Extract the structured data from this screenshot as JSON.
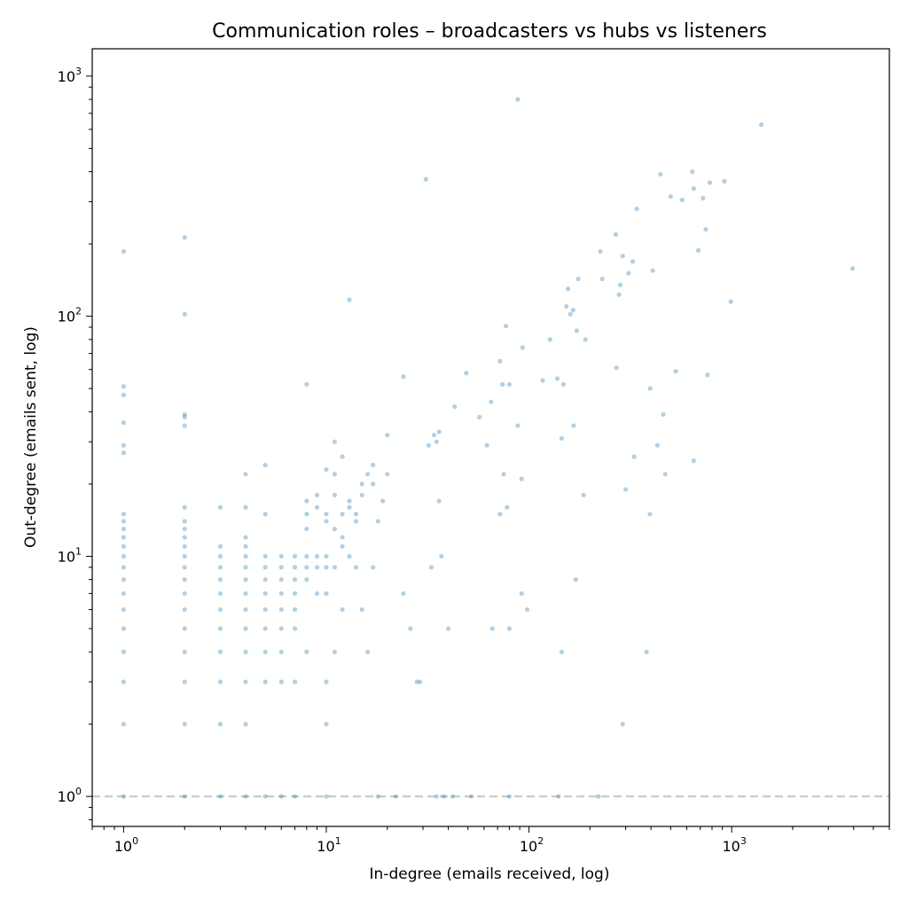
{
  "chart_data": {
    "type": "scatter",
    "title": "Communication roles – broadcasters vs hubs vs listeners",
    "xlabel": "In-degree (emails received, log)",
    "ylabel": "Out-degree (emails sent, log)",
    "xscale": "log",
    "yscale": "log",
    "xlim": [
      0.7,
      6000
    ],
    "ylim": [
      0.75,
      1300
    ],
    "grid": false,
    "legend": "none",
    "x_ticks": [
      {
        "base": "10",
        "exp": "0",
        "value": 1
      },
      {
        "base": "10",
        "exp": "1",
        "value": 10
      },
      {
        "base": "10",
        "exp": "2",
        "value": 100
      },
      {
        "base": "10",
        "exp": "3",
        "value": 1000
      }
    ],
    "y_ticks": [
      {
        "base": "10",
        "exp": "0",
        "value": 1
      },
      {
        "base": "10",
        "exp": "1",
        "value": 10
      },
      {
        "base": "10",
        "exp": "2",
        "value": 100
      },
      {
        "base": "10",
        "exp": "3",
        "value": 1000
      }
    ],
    "reference_line": {
      "y": 1,
      "style": "dashed",
      "color": "#c8c8c8"
    },
    "marker_color": "#1f77b4",
    "marker_alpha": 0.35,
    "series": [
      {
        "points": [
          [
            1,
            1
          ],
          [
            2,
            1
          ],
          [
            3,
            1
          ],
          [
            4,
            1
          ],
          [
            5,
            1
          ],
          [
            6,
            1
          ],
          [
            7,
            1
          ],
          [
            10,
            1
          ],
          [
            18,
            1
          ],
          [
            22,
            1
          ],
          [
            35,
            1
          ],
          [
            38,
            1
          ],
          [
            42,
            1
          ],
          [
            52,
            1
          ],
          [
            80,
            1
          ],
          [
            140,
            1
          ],
          [
            220,
            1
          ],
          [
            1,
            2
          ],
          [
            2,
            2
          ],
          [
            3,
            2
          ],
          [
            4,
            2
          ],
          [
            10,
            2
          ],
          [
            290,
            2
          ],
          [
            1,
            3
          ],
          [
            2,
            3
          ],
          [
            3,
            3
          ],
          [
            4,
            3
          ],
          [
            5,
            3
          ],
          [
            6,
            3
          ],
          [
            7,
            3
          ],
          [
            10,
            3
          ],
          [
            28,
            3
          ],
          [
            29,
            3
          ],
          [
            1,
            4
          ],
          [
            2,
            4
          ],
          [
            3,
            4
          ],
          [
            4,
            4
          ],
          [
            5,
            4
          ],
          [
            6,
            4
          ],
          [
            8,
            4
          ],
          [
            11,
            4
          ],
          [
            16,
            4
          ],
          [
            145,
            4
          ],
          [
            380,
            4
          ],
          [
            1,
            5
          ],
          [
            2,
            5
          ],
          [
            3,
            5
          ],
          [
            4,
            5
          ],
          [
            5,
            5
          ],
          [
            6,
            5
          ],
          [
            7,
            5
          ],
          [
            26,
            5
          ],
          [
            40,
            5
          ],
          [
            66,
            5
          ],
          [
            80,
            5
          ],
          [
            1,
            6
          ],
          [
            2,
            6
          ],
          [
            3,
            6
          ],
          [
            4,
            6
          ],
          [
            5,
            6
          ],
          [
            6,
            6
          ],
          [
            7,
            6
          ],
          [
            12,
            6
          ],
          [
            15,
            6
          ],
          [
            98,
            6
          ],
          [
            1,
            7
          ],
          [
            2,
            7
          ],
          [
            3,
            7
          ],
          [
            4,
            7
          ],
          [
            5,
            7
          ],
          [
            6,
            7
          ],
          [
            7,
            7
          ],
          [
            9,
            7
          ],
          [
            10,
            7
          ],
          [
            24,
            7
          ],
          [
            92,
            7
          ],
          [
            1,
            8
          ],
          [
            2,
            8
          ],
          [
            3,
            8
          ],
          [
            4,
            8
          ],
          [
            5,
            8
          ],
          [
            6,
            8
          ],
          [
            7,
            8
          ],
          [
            8,
            8
          ],
          [
            170,
            8
          ],
          [
            1,
            9
          ],
          [
            2,
            9
          ],
          [
            3,
            9
          ],
          [
            4,
            9
          ],
          [
            5,
            9
          ],
          [
            6,
            9
          ],
          [
            7,
            9
          ],
          [
            8,
            9
          ],
          [
            9,
            9
          ],
          [
            10,
            9
          ],
          [
            11,
            9
          ],
          [
            14,
            9
          ],
          [
            17,
            9
          ],
          [
            33,
            9
          ],
          [
            1,
            10
          ],
          [
            2,
            10
          ],
          [
            3,
            10
          ],
          [
            4,
            10
          ],
          [
            5,
            10
          ],
          [
            6,
            10
          ],
          [
            7,
            10
          ],
          [
            8,
            10
          ],
          [
            9,
            10
          ],
          [
            10,
            10
          ],
          [
            13,
            10
          ],
          [
            37,
            10
          ],
          [
            1,
            11
          ],
          [
            2,
            11
          ],
          [
            3,
            11
          ],
          [
            4,
            11
          ],
          [
            12,
            11
          ],
          [
            12,
            12
          ],
          [
            1,
            12
          ],
          [
            2,
            12
          ],
          [
            4,
            12
          ],
          [
            8,
            13
          ],
          [
            11,
            13
          ],
          [
            1,
            13
          ],
          [
            2,
            13
          ],
          [
            10,
            14
          ],
          [
            14,
            14
          ],
          [
            18,
            14
          ],
          [
            1,
            14
          ],
          [
            2,
            14
          ],
          [
            5,
            15
          ],
          [
            8,
            15
          ],
          [
            10,
            15
          ],
          [
            12,
            15
          ],
          [
            14,
            15
          ],
          [
            72,
            15
          ],
          [
            395,
            15
          ],
          [
            1,
            15
          ],
          [
            2,
            16
          ],
          [
            3,
            16
          ],
          [
            4,
            16
          ],
          [
            9,
            16
          ],
          [
            13,
            16
          ],
          [
            78,
            16
          ],
          [
            8,
            17
          ],
          [
            13,
            17
          ],
          [
            19,
            17
          ],
          [
            36,
            17
          ],
          [
            9,
            18
          ],
          [
            11,
            18
          ],
          [
            15,
            18
          ],
          [
            186,
            18
          ],
          [
            17,
            20
          ],
          [
            15,
            20
          ],
          [
            300,
            19
          ],
          [
            92,
            21
          ],
          [
            4,
            22
          ],
          [
            11,
            22
          ],
          [
            16,
            22
          ],
          [
            20,
            22
          ],
          [
            75,
            22
          ],
          [
            470,
            22
          ],
          [
            5,
            24
          ],
          [
            17,
            24
          ],
          [
            10,
            23
          ],
          [
            1,
            27
          ],
          [
            1,
            29
          ],
          [
            12,
            26
          ],
          [
            330,
            26
          ],
          [
            650,
            25
          ],
          [
            11,
            30
          ],
          [
            35,
            30
          ],
          [
            32,
            29
          ],
          [
            36,
            33
          ],
          [
            34,
            32
          ],
          [
            20,
            32
          ],
          [
            145,
            31
          ],
          [
            62,
            29
          ],
          [
            430,
            29
          ],
          [
            2,
            35
          ],
          [
            2,
            38
          ],
          [
            2,
            39
          ],
          [
            1,
            36
          ],
          [
            57,
            38
          ],
          [
            88,
            35
          ],
          [
            166,
            35
          ],
          [
            460,
            39
          ],
          [
            43,
            42
          ],
          [
            65,
            44
          ],
          [
            1,
            47
          ],
          [
            1,
            51
          ],
          [
            8,
            52
          ],
          [
            74,
            52
          ],
          [
            80,
            52
          ],
          [
            148,
            52
          ],
          [
            396,
            50
          ],
          [
            24,
            56
          ],
          [
            49,
            58
          ],
          [
            117,
            54
          ],
          [
            138,
            55
          ],
          [
            530,
            59
          ],
          [
            760,
            57
          ],
          [
            270,
            61
          ],
          [
            72,
            65
          ],
          [
            93,
            74
          ],
          [
            127,
            80
          ],
          [
            190,
            80
          ],
          [
            172,
            87
          ],
          [
            77,
            91
          ],
          [
            2,
            102
          ],
          [
            160,
            102
          ],
          [
            153,
            110
          ],
          [
            165,
            106
          ],
          [
            156,
            130
          ],
          [
            175,
            143
          ],
          [
            230,
            143
          ],
          [
            278,
            123
          ],
          [
            282,
            135
          ],
          [
            310,
            151
          ],
          [
            408,
            155
          ],
          [
            990,
            115
          ],
          [
            13,
            117
          ],
          [
            225,
            186
          ],
          [
            268,
            219
          ],
          [
            290,
            178
          ],
          [
            325,
            169
          ],
          [
            685,
            188
          ],
          [
            745,
            230
          ],
          [
            3950,
            158
          ],
          [
            1,
            186
          ],
          [
            2,
            213
          ],
          [
            340,
            280
          ],
          [
            500,
            315
          ],
          [
            570,
            305
          ],
          [
            722,
            310
          ],
          [
            650,
            340
          ],
          [
            445,
            390
          ],
          [
            640,
            400
          ],
          [
            780,
            360
          ],
          [
            920,
            365
          ],
          [
            31,
            372
          ],
          [
            88,
            800
          ],
          [
            1400,
            628
          ]
        ]
      }
    ]
  }
}
